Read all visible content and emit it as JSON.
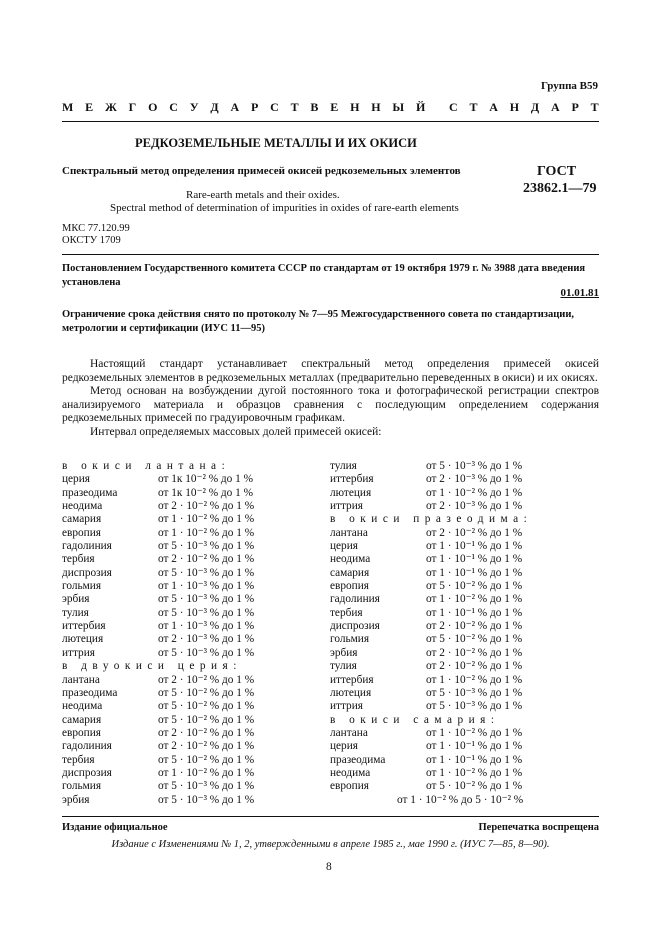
{
  "group": "Группа В59",
  "standard_type_letters": [
    "М",
    "Е",
    "Ж",
    "Г",
    "О",
    "С",
    "У",
    "Д",
    "А",
    "Р",
    "С",
    "Т",
    "В",
    "Е",
    "Н",
    "Н",
    "Ы",
    "Й",
    "",
    "С",
    "Т",
    "А",
    "Н",
    "Д",
    "А",
    "Р",
    "Т"
  ],
  "title": "РЕДКОЗЕМЕЛЬНЫЕ МЕТАЛЛЫ И ИХ ОКИСИ",
  "subtitle": "Спектральный метод определения примесей окисей редкоземельных элементов",
  "gost_label": "ГОСТ",
  "gost_number": "23862.1—79",
  "english_title_1": "Rare-earth metals and their oxides.",
  "english_title_2": "Spectral method of determination of impurities in oxides of rare-earth elements",
  "mks": "МКС 77.120.99",
  "okstu": "ОКСТУ 1709",
  "decree": "Постановлением Государственного комитета СССР по стандартам от 19 октября 1979 г. № 3988 дата введения установлена",
  "intro_date": "01.01.81",
  "restriction": "Ограничение срока действия снято по протоколу № 7—95 Межгосударственного совета по стандартизации, метрологии и сертификации (ИУС 11—95)",
  "paragraphs": [
    "Настоящий стандарт устанавливает спектральный метод определения примесей окисей редкоземельных элементов в редкоземельных металлах (предварительно переведенных в окиси) и их окисях.",
    "Метод основан на возбуждении дугой постоянного тока и фотографической регистрации спектров анализируемого материала и образцов сравнения с последующим определением содержания редкоземельных примесей по градуировочным графикам.",
    "Интервал определяемых массовых долей примесей окисей:"
  ],
  "left_column": [
    {
      "heading": "в окиси  лантана:"
    },
    {
      "name": "церия",
      "range": "от 1к 10⁻² % до 1 %"
    },
    {
      "name": "празеодима",
      "range": "от 1к 10⁻² % до 1 %"
    },
    {
      "name": "неодима",
      "range": "от 2 · 10⁻² % до 1 %"
    },
    {
      "name": "самария",
      "range": "от 1 · 10⁻² % до 1 %"
    },
    {
      "name": "европия",
      "range": "от 1 · 10⁻² % до 1 %"
    },
    {
      "name": "гадолиния",
      "range": "от 5 · 10⁻³ % до 1 %"
    },
    {
      "name": "тербия",
      "range": "от 2 · 10⁻² % до 1 %"
    },
    {
      "name": "диспрозия",
      "range": "от 5 · 10⁻³ % до 1 %"
    },
    {
      "name": "гольмия",
      "range": "от 1 · 10⁻³ % до 1 %"
    },
    {
      "name": "эрбия",
      "range": "от 5 · 10⁻³ % до 1 %"
    },
    {
      "name": "тулия",
      "range": "от 5 · 10⁻³ % до 1 %"
    },
    {
      "name": "иттербия",
      "range": "от 1 · 10⁻³ % до 1 %"
    },
    {
      "name": "лютеция",
      "range": "от 2 · 10⁻³ % до 1 %"
    },
    {
      "name": "иттрия",
      "range": "от 5 · 10⁻³ % до 1 %"
    },
    {
      "heading": "в двуокиси  церия:"
    },
    {
      "name": "лантана",
      "range": "от 2 · 10⁻² % до 1 %"
    },
    {
      "name": "празеодима",
      "range": "от 5 · 10⁻² % до 1 %"
    },
    {
      "name": "неодима",
      "range": "от 5 · 10⁻² % до 1 %"
    },
    {
      "name": "самария",
      "range": "от 5 · 10⁻² % до 1 %"
    },
    {
      "name": "европия",
      "range": "от 2 · 10⁻² % до 1 %"
    },
    {
      "name": "гадолиния",
      "range": "от 2 · 10⁻² % до 1 %"
    },
    {
      "name": "тербия",
      "range": "от 5 · 10⁻² % до 1 %"
    },
    {
      "name": "диспрозия",
      "range": "от 1 · 10⁻² % до 1 %"
    },
    {
      "name": "гольмия",
      "range": "от 5 · 10⁻³ % до 1 %"
    },
    {
      "name": "эрбия",
      "range": "от 5 · 10⁻³ % до 1 %"
    }
  ],
  "right_column": [
    {
      "name": "тулия",
      "range": "от 5 · 10⁻³ % до 1 %"
    },
    {
      "name": "иттербия",
      "range": "от 2 · 10⁻³ % до 1 %"
    },
    {
      "name": "лютеция",
      "range": "от 1 · 10⁻² % до 1 %"
    },
    {
      "name": "иттрия",
      "range": "от 2 · 10⁻³ % до 1 %"
    },
    {
      "heading": "в окиси  празеодима:"
    },
    {
      "name": "лантана",
      "range": "от 2 · 10⁻² % до 1 %"
    },
    {
      "name": "церия",
      "range": "от 1 · 10⁻¹ % до 1 %"
    },
    {
      "name": "неодима",
      "range": "от 1 · 10⁻¹ % до 1 %"
    },
    {
      "name": "самария",
      "range": "от 1 · 10⁻¹ % до 1 %"
    },
    {
      "name": "европия",
      "range": "от 5 · 10⁻² % до 1 %"
    },
    {
      "name": "гадолиния",
      "range": "от 1 · 10⁻² % до 1 %"
    },
    {
      "name": "тербия",
      "range": "от 1 · 10⁻¹ % до 1 %"
    },
    {
      "name": "диспрозия",
      "range": "от 2 · 10⁻² % до 1 %"
    },
    {
      "name": "гольмия",
      "range": "от 5 · 10⁻² % до 1 %"
    },
    {
      "name": "эрбия",
      "range": "от 2 · 10⁻² % до 1 %"
    },
    {
      "name": "тулия",
      "range": "от 2 · 10⁻² % до 1 %"
    },
    {
      "name": "иттербия",
      "range": "от 1 · 10⁻² % до 1 %"
    },
    {
      "name": "лютеция",
      "range": "от 5 · 10⁻³ % до 1 %"
    },
    {
      "name": "иттрия",
      "range": "от 5 · 10⁻³ % до 1 %"
    },
    {
      "heading": "в окиси  самария:"
    },
    {
      "name": "лантана",
      "range": "от 1 · 10⁻² % до 1 %"
    },
    {
      "name": "церия",
      "range": "от 1 · 10⁻¹ % до 1 %"
    },
    {
      "name": "празеодима",
      "range": "от 1 · 10⁻¹ % до 1 %"
    },
    {
      "name": "неодима",
      "range": "от 1 · 10⁻² % до 1 %"
    },
    {
      "name": "европия",
      "range": "от 5 · 10⁻² % до 1 %"
    },
    {
      "range_only": "от 1 · 10⁻² % до 5 · 10⁻² %"
    }
  ],
  "footer_left": "Издание официальное",
  "footer_right": "Перепечатка воспрещена",
  "edition_note": "Издание с Изменениями № 1, 2, утвержденными в апреле 1985 г., мае 1990 г. (ИУС 7—85, 8—90).",
  "page_number": "8"
}
